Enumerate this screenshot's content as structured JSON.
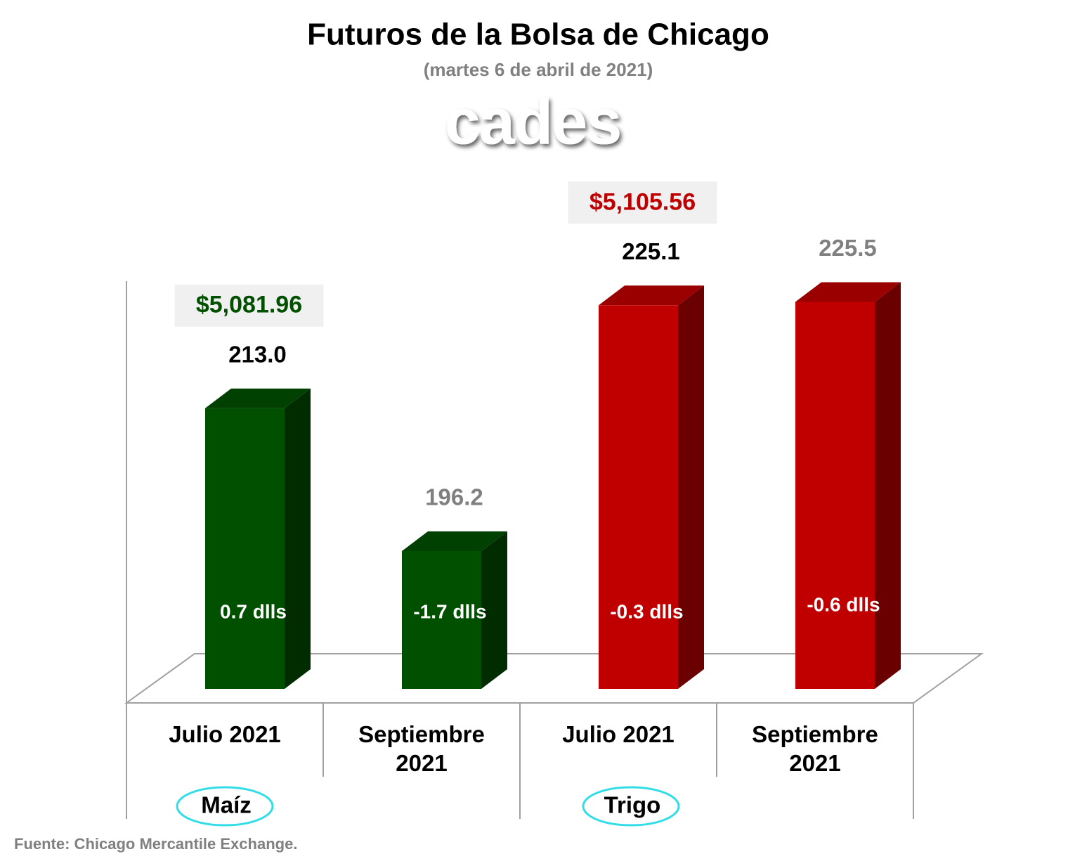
{
  "chart_data": {
    "type": "bar3d",
    "title": "Futuros de la Bolsa de Chicago",
    "subtitle": "(martes 6 de abril de 2021)",
    "logo": "cades",
    "categories": [
      "Julio 2021",
      "Septiembre 2021",
      "Julio 2021",
      "Septiembre 2021"
    ],
    "groups": [
      "Maíz",
      "Trigo"
    ],
    "values": [
      213.0,
      196.2,
      225.1,
      225.5
    ],
    "value_labels": [
      "213.0",
      "196.2",
      "225.1",
      "225.5"
    ],
    "value_label_colors": [
      "#000000",
      "#808080",
      "#000000",
      "#808080"
    ],
    "colors": [
      "#005000",
      "#005000",
      "#c00000",
      "#c00000"
    ],
    "changes": [
      "0.7 dlls",
      "-1.7 dlls",
      "-0.3 dlls",
      "-0.6 dlls"
    ],
    "prices": [
      "$5,081.96",
      null,
      "$5,105.56",
      null
    ],
    "ylim": [
      180,
      230
    ],
    "source": "Fuente: Chicago Mercantile Exchange."
  }
}
